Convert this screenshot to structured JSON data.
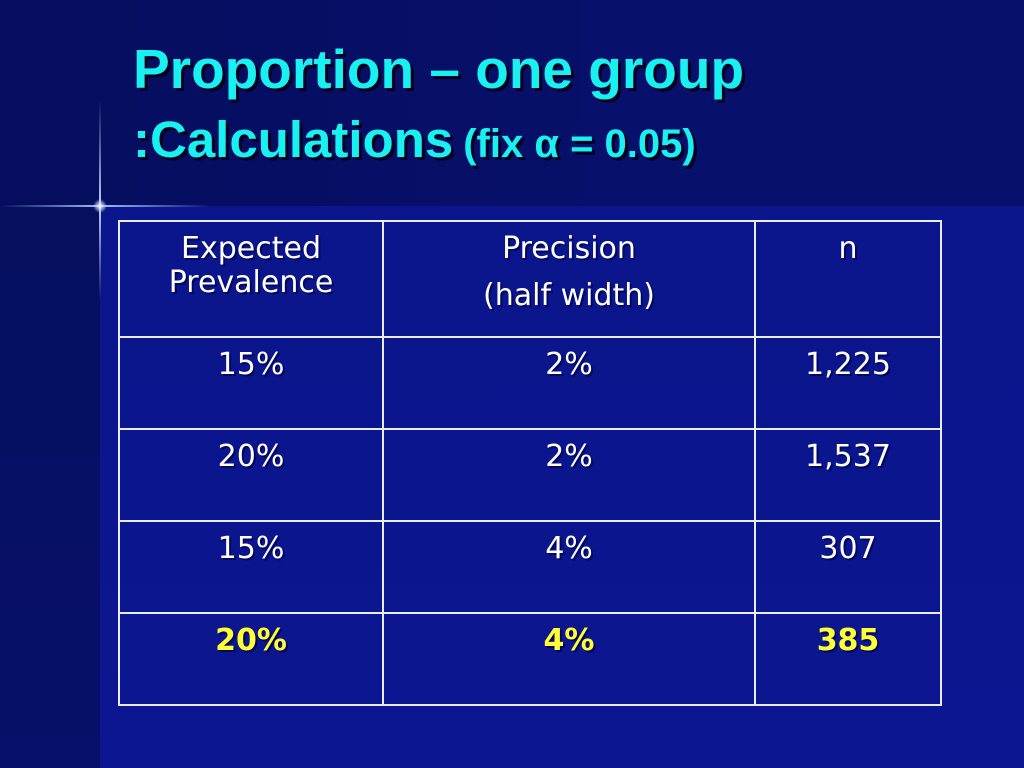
{
  "slide": {
    "title_line1": "Proportion – one group",
    "title_line2_main": ":Calculations",
    "title_line2_suffix_before": "(fix ",
    "title_alpha_symbol": "α",
    "title_line2_suffix_after": " = 0.05)"
  },
  "table": {
    "headers": {
      "prevalence": "Expected Prevalence",
      "precision_line1": "Precision",
      "precision_line2": "(half width)",
      "n": "n"
    },
    "rows": [
      {
        "prevalence": "15%",
        "precision": "2%",
        "n": "1,225"
      },
      {
        "prevalence": "20%",
        "precision": "2%",
        "n": "1,537"
      },
      {
        "prevalence": "15%",
        "precision": "4%",
        "n": "307"
      },
      {
        "prevalence": "20%",
        "precision": "4%",
        "n": "385"
      }
    ],
    "highlight_row_index": 3
  },
  "colors": {
    "background": "#0a137c",
    "title": "#19f0f0",
    "table_text": "#ffffff",
    "highlight_text": "#ffff33",
    "grid_line": "#e8ecff"
  }
}
